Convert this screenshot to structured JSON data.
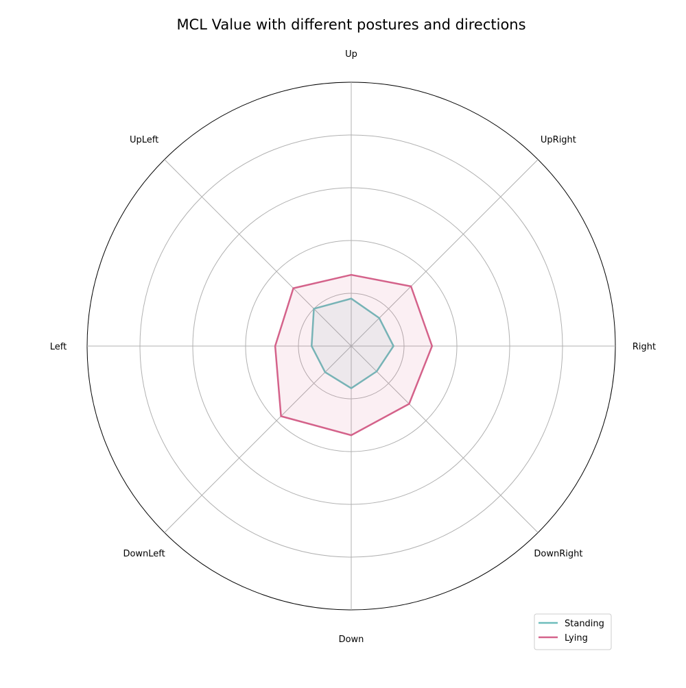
{
  "chart_data": {
    "type": "radar",
    "title": "MCL Value with different postures and directions",
    "categories": [
      "Up",
      "UpRight",
      "Right",
      "DownRight",
      "Down",
      "DownLeft",
      "Left",
      "UpLeft"
    ],
    "rlim": [
      0,
      5
    ],
    "rgrid_values": [
      1,
      2,
      3,
      4,
      5
    ],
    "grid": true,
    "legend_position": "lower-right",
    "series": [
      {
        "name": "Standing",
        "color": "#6dbdbb",
        "fill_opacity": 0.1,
        "values": [
          0.9,
          0.75,
          0.8,
          0.68,
          0.8,
          0.7,
          0.75,
          1.0
        ]
      },
      {
        "name": "Lying",
        "color": "#d4628a",
        "fill_opacity": 0.1,
        "values": [
          1.35,
          1.6,
          1.53,
          1.55,
          1.69,
          1.88,
          1.44,
          1.55
        ]
      }
    ]
  }
}
